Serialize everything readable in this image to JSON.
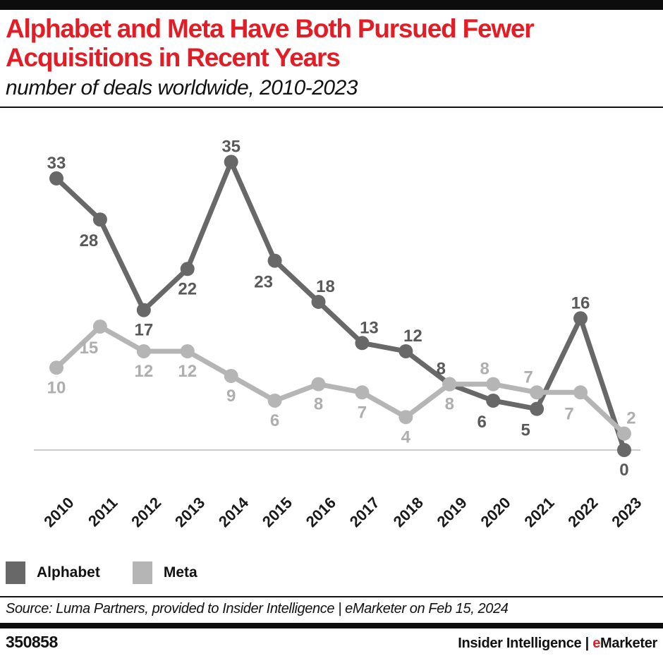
{
  "header": {
    "title_line1": "Alphabet and Meta Have Both Pursued Fewer",
    "title_line2": "Acquisitions in Recent Years",
    "subtitle": "number of deals worldwide, 2010-2023"
  },
  "colors": {
    "accent_red": "#e21d25",
    "alphabet_gray": "#686868",
    "meta_gray": "#b5b5b5",
    "axis_line_gray": "#cccccc"
  },
  "chart_data": {
    "type": "line",
    "title": "Alphabet and Meta Have Both Pursued Fewer Acquisitions in Recent Years",
    "subtitle": "number of deals worldwide, 2010-2023",
    "x_labels": [
      "2010",
      "2011",
      "2012",
      "2013",
      "2014",
      "2015",
      "2016",
      "2017",
      "2018",
      "2019",
      "2020",
      "2021",
      "2022",
      "2023"
    ],
    "ylim": [
      0,
      35
    ],
    "grid": false,
    "legend_position": "bottom-left",
    "axis_line_color": "#cccccc",
    "tick_color": "#1a1a1a",
    "series": [
      {
        "name": "Alphabet",
        "color": "#686868",
        "label_color": "#595959",
        "values": [
          33,
          28,
          17,
          22,
          35,
          23,
          18,
          13,
          12,
          8,
          6,
          5,
          16,
          0
        ],
        "label_positions": [
          "above",
          "below-left",
          "below",
          "below",
          "above",
          "below-left",
          "above-right",
          "above-right",
          "above-right",
          "above-left",
          "below-left",
          "below-left",
          "above",
          "below"
        ]
      },
      {
        "name": "Meta",
        "color": "#b5b5b5",
        "label_color": "#aeaeae",
        "values": [
          10,
          15,
          12,
          12,
          9,
          6,
          8,
          7,
          4,
          8,
          8,
          7,
          7,
          2
        ],
        "label_positions": [
          "below",
          "below-left",
          "below",
          "below",
          "below",
          "below",
          "below",
          "below",
          "below",
          "below",
          "above-left",
          "above-left",
          "below-left",
          "above-right"
        ]
      }
    ]
  },
  "source": {
    "text": "Source: Luma Partners, provided to Insider Intelligence | eMarketer on Feb 15, 2024"
  },
  "footer": {
    "chart_id": "350858",
    "brand_primary": "Insider Intelligence",
    "separator": "|",
    "brand_e": "e",
    "brand_rest": "Marketer"
  }
}
